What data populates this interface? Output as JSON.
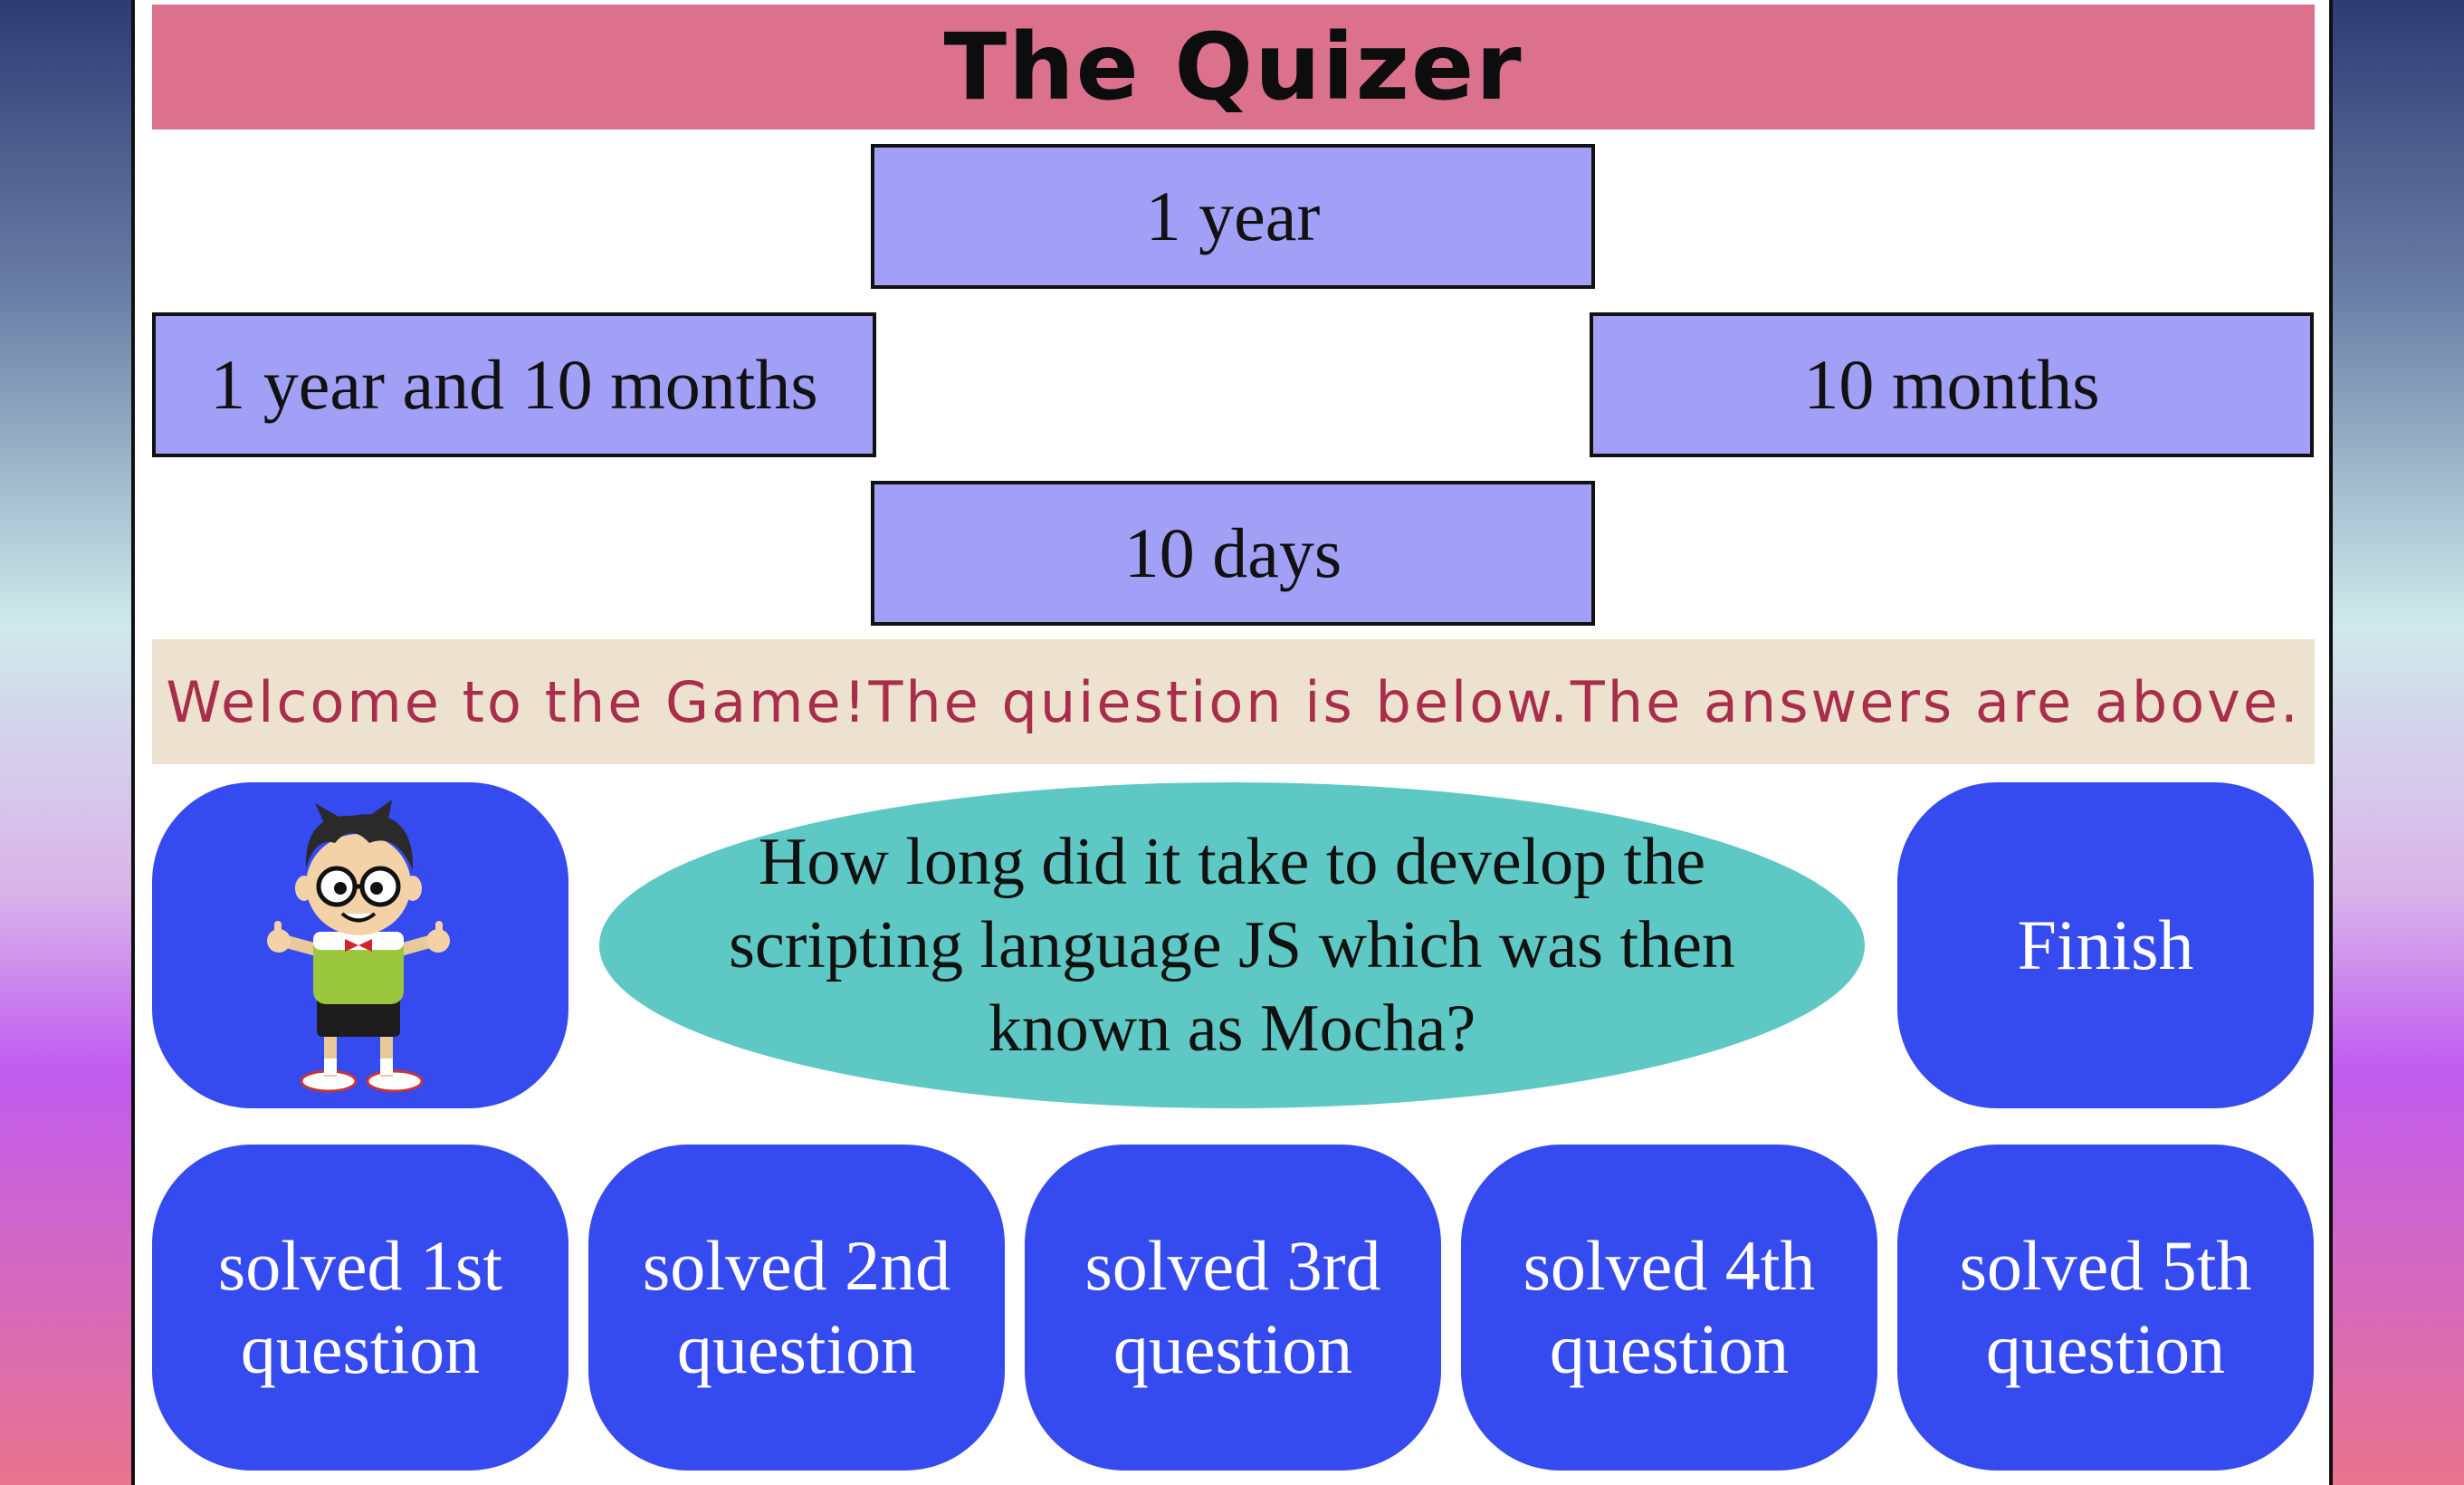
{
  "title": "The Quizer",
  "answers": {
    "top": "1 year",
    "left": "1 year and 10 months",
    "right": "10 months",
    "bottom": "10 days"
  },
  "welcome": "Welcome to the Game!The quiestion is below.The answers are above.",
  "question": "How long did it take to develop the scripting language JS which was then known as Mocha?",
  "finish_label": "Finish",
  "progress": [
    {
      "line1": "solved 1st",
      "line2": "question"
    },
    {
      "line1": "solved 2nd",
      "line2": "question"
    },
    {
      "line1": "solved 3rd",
      "line2": "question"
    },
    {
      "line1": "solved 4th",
      "line2": "question"
    },
    {
      "line1": "solved 5th",
      "line2": "question"
    }
  ],
  "avatar_icon": "cartoon-boy-thumbs-up",
  "colors": {
    "title_bar": "#dc718e",
    "answer_box": "#a2a0f6",
    "blue_button": "#364bef",
    "question_bubble": "#5ec8c4",
    "welcome_text": "#a92e4c"
  }
}
